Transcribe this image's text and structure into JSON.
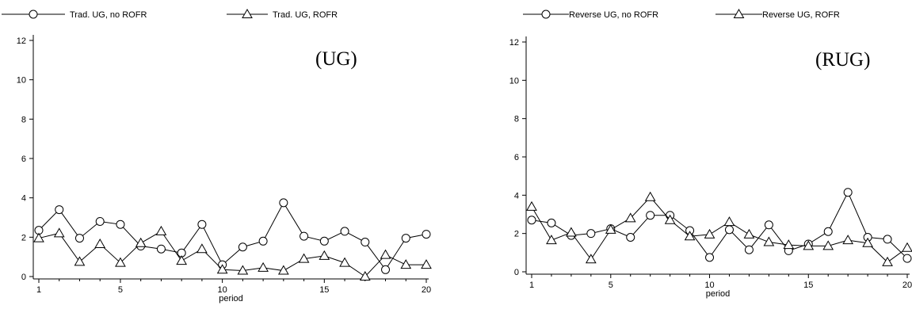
{
  "chart_data": [
    {
      "type": "line",
      "panel_label": "(UG)",
      "xlabel": "period",
      "ylabel": "",
      "xlim": [
        1,
        20
      ],
      "ylim": [
        0,
        12
      ],
      "xticks": [
        1,
        5,
        10,
        15,
        20
      ],
      "yticks": [
        0,
        2,
        4,
        6,
        8,
        10,
        12
      ],
      "x": [
        1,
        2,
        3,
        4,
        5,
        6,
        7,
        8,
        9,
        10,
        11,
        12,
        13,
        14,
        15,
        16,
        17,
        18,
        19,
        20
      ],
      "legend_position": "top",
      "series": [
        {
          "name": "Trad. UG, no ROFR",
          "marker": "circle",
          "values": [
            2.35,
            3.4,
            1.95,
            2.8,
            2.65,
            1.55,
            1.4,
            1.2,
            2.65,
            0.6,
            1.5,
            1.8,
            3.75,
            2.05,
            1.8,
            2.3,
            1.75,
            0.35,
            1.95,
            2.15
          ]
        },
        {
          "name": "Trad. UG, ROFR",
          "marker": "triangle",
          "values": [
            1.95,
            2.2,
            0.75,
            1.65,
            0.7,
            1.7,
            2.3,
            0.8,
            1.4,
            0.35,
            0.3,
            0.45,
            0.3,
            0.9,
            1.05,
            0.7,
            0.0,
            1.1,
            0.6,
            0.6
          ]
        }
      ]
    },
    {
      "type": "line",
      "panel_label": "(RUG)",
      "xlabel": "period",
      "ylabel": "",
      "xlim": [
        1,
        20
      ],
      "ylim": [
        0,
        12
      ],
      "xticks": [
        1,
        5,
        10,
        15,
        20
      ],
      "yticks": [
        0,
        2,
        4,
        6,
        8,
        10,
        12
      ],
      "x": [
        1,
        2,
        3,
        4,
        5,
        6,
        7,
        8,
        9,
        10,
        11,
        12,
        13,
        14,
        15,
        16,
        17,
        18,
        19,
        20
      ],
      "legend_position": "top",
      "series": [
        {
          "name": "Reverse UG, no ROFR",
          "marker": "circle",
          "values": [
            2.7,
            2.55,
            1.9,
            2.0,
            2.25,
            1.8,
            2.95,
            2.95,
            2.15,
            0.75,
            2.2,
            1.15,
            2.45,
            1.1,
            1.45,
            2.1,
            4.15,
            1.8,
            1.7,
            0.7
          ]
        },
        {
          "name": "Reverse UG, ROFR",
          "marker": "triangle",
          "values": [
            3.4,
            1.65,
            2.05,
            0.65,
            2.2,
            2.8,
            3.9,
            2.7,
            1.85,
            1.95,
            2.6,
            1.95,
            1.55,
            1.4,
            1.35,
            1.35,
            1.65,
            1.5,
            0.5,
            1.25
          ]
        }
      ]
    }
  ]
}
